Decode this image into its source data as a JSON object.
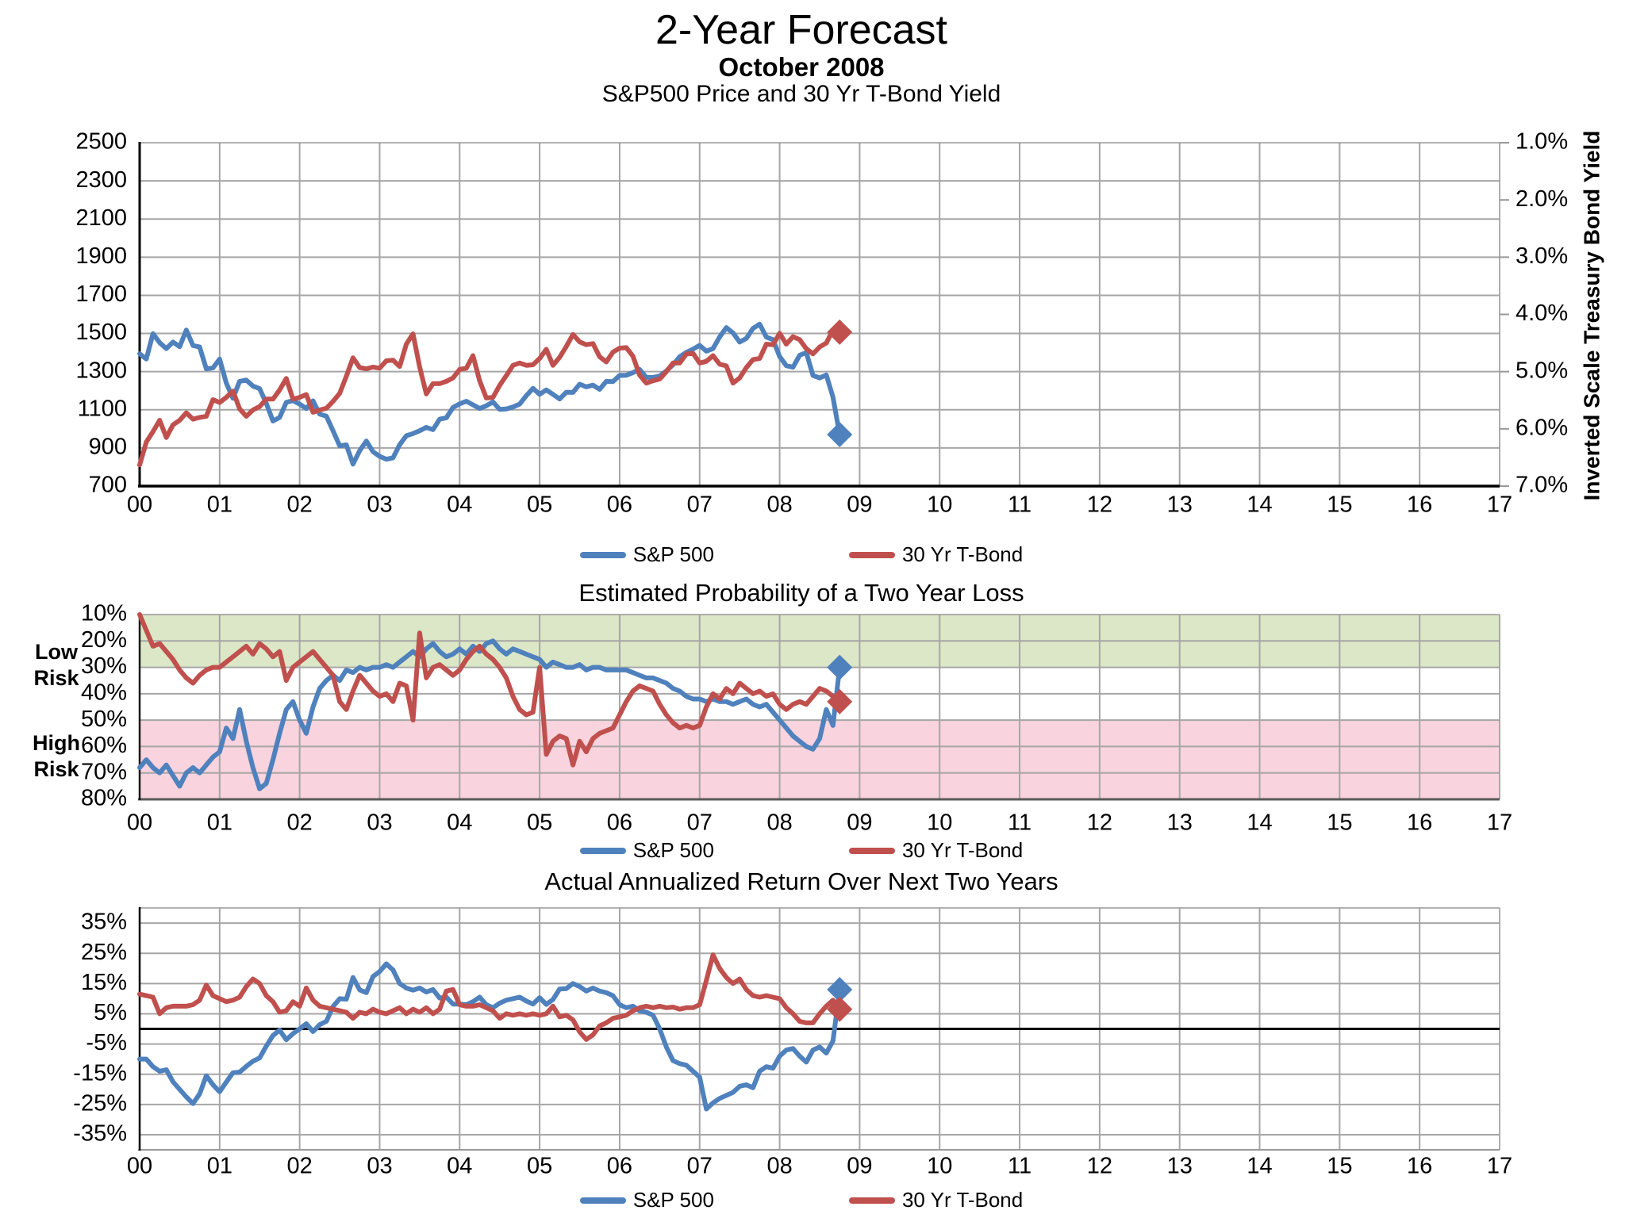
{
  "header": {
    "title": "2-Year Forecast",
    "subtitle": "October 2008"
  },
  "legend": {
    "sp500": "S&P 500",
    "tbond": "30 Yr T-Bond"
  },
  "colors": {
    "sp500": "#4F81BD",
    "tbond": "#C0504D",
    "green_band": "#DBE7C6",
    "pink_band": "#F9D3DE",
    "grid": "#A6A6A6",
    "border": "#999999",
    "axis": "#000000"
  },
  "x_axis": {
    "labels": [
      "00",
      "01",
      "02",
      "03",
      "04",
      "05",
      "06",
      "07",
      "08",
      "09",
      "10",
      "11",
      "12",
      "13",
      "14",
      "15",
      "16",
      "17"
    ],
    "start_year": 2000,
    "end_year": 2017
  },
  "chart_data": [
    {
      "type": "line",
      "title": "S&P500 Price and 30 Yr T-Bond Yield",
      "y_left": {
        "min": 700,
        "max": 2500,
        "tick_values": [
          2500,
          2300,
          2100,
          1900,
          1700,
          1500,
          1300,
          1100,
          900,
          700
        ],
        "tick_labels": [
          "2500",
          "2300",
          "2100",
          "1900",
          "1700",
          "1500",
          "1300",
          "1100",
          "900",
          "700"
        ]
      },
      "y_right": {
        "title": "Inverted Scale Treasury Bond Yield",
        "inverted": true,
        "min": 1.0,
        "max": 7.0,
        "tick_values": [
          1,
          2,
          3,
          4,
          5,
          6,
          7
        ],
        "tick_labels": [
          "1.0%",
          "2.0%",
          "3.0%",
          "4.0%",
          "5.0%",
          "6.0%",
          "7.0%"
        ]
      },
      "x_start": 2000.0,
      "x_step_months": 1,
      "end_marker": "diamond",
      "series": [
        {
          "name": "S&P 500",
          "color_key": "sp500",
          "axis": "left",
          "values": [
            1394,
            1366,
            1499,
            1452,
            1421,
            1455,
            1431,
            1518,
            1437,
            1429,
            1315,
            1320,
            1366,
            1240,
            1160,
            1249,
            1256,
            1224,
            1211,
            1134,
            1041,
            1060,
            1139,
            1148,
            1130,
            1107,
            1147,
            1077,
            1067,
            990,
            911,
            916,
            815,
            886,
            936,
            880,
            856,
            841,
            848,
            917,
            964,
            975,
            990,
            1008,
            996,
            1051,
            1058,
            1112,
            1131,
            1145,
            1126,
            1107,
            1121,
            1141,
            1102,
            1104,
            1115,
            1130,
            1174,
            1212,
            1181,
            1204,
            1181,
            1157,
            1192,
            1191,
            1234,
            1220,
            1229,
            1207,
            1249,
            1248,
            1280,
            1281,
            1295,
            1311,
            1270,
            1270,
            1277,
            1304,
            1336,
            1378,
            1401,
            1418,
            1438,
            1407,
            1421,
            1482,
            1531,
            1503,
            1455,
            1474,
            1527,
            1549,
            1481,
            1468,
            1379,
            1331,
            1323,
            1386,
            1400,
            1280,
            1267,
            1283,
            1166,
            970
          ]
        },
        {
          "name": "30 Yr T-Bond",
          "color_key": "tbond",
          "axis": "right",
          "values": [
            6.63,
            6.23,
            6.05,
            5.85,
            6.15,
            5.93,
            5.85,
            5.72,
            5.83,
            5.8,
            5.78,
            5.49,
            5.54,
            5.45,
            5.34,
            5.65,
            5.78,
            5.67,
            5.61,
            5.48,
            5.48,
            5.32,
            5.12,
            5.48,
            5.45,
            5.4,
            5.71,
            5.67,
            5.64,
            5.52,
            5.38,
            5.08,
            4.76,
            4.93,
            4.95,
            4.92,
            4.94,
            4.81,
            4.8,
            4.91,
            4.52,
            4.34,
            4.92,
            5.39,
            5.21,
            5.21,
            5.17,
            5.11,
            4.96,
            4.94,
            4.72,
            5.16,
            5.46,
            5.45,
            5.24,
            5.07,
            4.89,
            4.85,
            4.89,
            4.88,
            4.77,
            4.61,
            4.89,
            4.75,
            4.56,
            4.35,
            4.48,
            4.53,
            4.51,
            4.74,
            4.83,
            4.66,
            4.59,
            4.58,
            4.73,
            5.06,
            5.2,
            5.16,
            5.13,
            5.0,
            4.85,
            4.85,
            4.69,
            4.68,
            4.85,
            4.82,
            4.72,
            4.87,
            4.9,
            5.2,
            5.11,
            4.93,
            4.79,
            4.77,
            4.52,
            4.53,
            4.33,
            4.52,
            4.39,
            4.44,
            4.6,
            4.69,
            4.57,
            4.5,
            4.27,
            4.31
          ]
        }
      ]
    },
    {
      "type": "line",
      "title": "Estimated Probability of a Two Year Loss",
      "y_left": {
        "inverted": true,
        "min": 10,
        "max": 80,
        "tick_values": [
          10,
          20,
          30,
          40,
          50,
          60,
          70,
          80
        ],
        "tick_labels": [
          "10%",
          "20%",
          "30%",
          "40%",
          "50%",
          "60%",
          "70%",
          "80%"
        ]
      },
      "bands": [
        {
          "label": "Low Risk",
          "range": [
            10,
            30
          ],
          "color_key": "green_band"
        },
        {
          "label": "High Risk",
          "range": [
            50,
            80
          ],
          "color_key": "pink_band"
        }
      ],
      "x_start": 2000.0,
      "x_step_months": 1,
      "end_marker": "diamond",
      "series": [
        {
          "name": "S&P 500",
          "color_key": "sp500",
          "axis": "left",
          "values": [
            68,
            65,
            68,
            70,
            67,
            71,
            75,
            70,
            68,
            70,
            67,
            64,
            62,
            53,
            57,
            46,
            58,
            68,
            76,
            74,
            65,
            55,
            46,
            43,
            50,
            55,
            45,
            38,
            35,
            33,
            35,
            31,
            32,
            30,
            31,
            30,
            30,
            29,
            30,
            28,
            26,
            24,
            26,
            23,
            21,
            24,
            26,
            25,
            23,
            25,
            22,
            24,
            21,
            20,
            23,
            25,
            23,
            24,
            25,
            26,
            27,
            30,
            28,
            29,
            30,
            30,
            29,
            31,
            30,
            30,
            31,
            31,
            31,
            31,
            32,
            33,
            34,
            34,
            35,
            36,
            38,
            39,
            41,
            42,
            42,
            43,
            42,
            43,
            43,
            44,
            43,
            42,
            44,
            45,
            44,
            47,
            50,
            53,
            56,
            58,
            60,
            61,
            57,
            46,
            52,
            30
          ]
        },
        {
          "name": "30 Yr T-Bond",
          "color_key": "tbond",
          "axis": "left",
          "values": [
            10,
            16,
            22,
            21,
            24,
            27,
            31,
            34,
            36,
            33,
            31,
            30,
            30,
            28,
            26,
            24,
            22,
            25,
            21,
            23,
            26,
            24,
            35,
            30,
            28,
            26,
            24,
            27,
            30,
            33,
            43,
            46,
            39,
            33,
            36,
            39,
            41,
            40,
            43,
            36,
            37,
            50,
            17,
            34,
            30,
            29,
            31,
            33,
            31,
            27,
            24,
            22,
            25,
            27,
            30,
            34,
            41,
            46,
            48,
            47,
            30,
            63,
            58,
            56,
            57,
            67,
            58,
            62,
            57,
            55,
            54,
            53,
            48,
            43,
            39,
            37,
            38,
            39,
            44,
            48,
            51,
            53,
            52,
            53,
            52,
            45,
            40,
            42,
            38,
            40,
            36,
            38,
            40,
            39,
            41,
            40,
            44,
            46,
            44,
            43,
            44,
            41,
            38,
            39,
            41,
            43
          ]
        }
      ]
    },
    {
      "type": "line",
      "title": "Actual Annualized Return Over Next Two Years",
      "y_left": {
        "min": -40,
        "max": 40,
        "zero_line": true,
        "tick_values": [
          35,
          25,
          15,
          5,
          -5,
          -15,
          -25,
          -35
        ],
        "tick_labels": [
          "35%",
          "25%",
          "15%",
          "5%",
          "-5%",
          "-15%",
          "-25%",
          "-35%"
        ]
      },
      "x_start": 2000.0,
      "x_step_months": 1,
      "end_marker": "diamond",
      "series": [
        {
          "name": "S&P 500",
          "color_key": "sp500",
          "axis": "left",
          "values": [
            -10,
            -10,
            -12.5,
            -14,
            -13.5,
            -17.5,
            -20,
            -22.5,
            -24.7,
            -21.5,
            -15.5,
            -18.5,
            -20.8,
            -17.6,
            -14.5,
            -14.3,
            -12.4,
            -10.7,
            -9.6,
            -5.7,
            -2.2,
            -0.4,
            -3.6,
            -1.6,
            0,
            1.7,
            -0.9,
            1.4,
            2.5,
            7.4,
            10,
            9.8,
            17,
            12.9,
            12,
            17.3,
            19,
            21.5,
            19.5,
            15,
            13.5,
            12.8,
            13.5,
            12.2,
            13,
            10.2,
            10.5,
            8.2,
            8.2,
            8,
            9,
            10.5,
            8,
            7,
            8.5,
            9.5,
            10,
            10.5,
            9.2,
            8.2,
            10.3,
            8.1,
            9.7,
            13.2,
            13.3,
            15,
            14,
            12.5,
            13.5,
            12.5,
            12,
            11,
            8,
            7,
            7.5,
            6,
            5.5,
            4.5,
            0,
            -6,
            -10.5,
            -11.5,
            -12,
            -14,
            -16,
            -26.5,
            -24.5,
            -23,
            -22,
            -21,
            -19,
            -18.5,
            -19.5,
            -14,
            -12.5,
            -13,
            -9,
            -7,
            -6.5,
            -9,
            -11,
            -7,
            -6,
            -8,
            -4,
            13
          ]
        },
        {
          "name": "30 Yr T-Bond",
          "color_key": "tbond",
          "axis": "left",
          "values": [
            11.5,
            11,
            10.5,
            5,
            7,
            7.5,
            7.5,
            7.5,
            8,
            9.5,
            14.5,
            11,
            10,
            9,
            9.5,
            10.5,
            14,
            16.5,
            15,
            11,
            9,
            5.5,
            6,
            9,
            7.5,
            13.5,
            9.5,
            7.5,
            7,
            6.5,
            6,
            5.5,
            3.5,
            5.5,
            5,
            6.5,
            5.5,
            5,
            6,
            7,
            5,
            6.5,
            5.5,
            7,
            5,
            6.5,
            12.5,
            13,
            8,
            7.5,
            7.5,
            8,
            7,
            6,
            3.5,
            5,
            4.5,
            5,
            4.5,
            5,
            4.5,
            5,
            7.5,
            4,
            4.5,
            3,
            -1,
            -3.5,
            -2,
            1,
            2,
            3.5,
            4,
            4.5,
            6,
            7,
            7.5,
            7,
            7.5,
            7,
            7.2,
            6.5,
            7,
            7,
            8,
            16,
            24.5,
            20,
            17,
            15,
            16.5,
            13,
            11,
            10.5,
            11,
            10.5,
            10,
            7,
            5,
            2.5,
            2,
            2,
            5,
            7.5,
            9.5,
            6.5
          ]
        }
      ]
    }
  ]
}
